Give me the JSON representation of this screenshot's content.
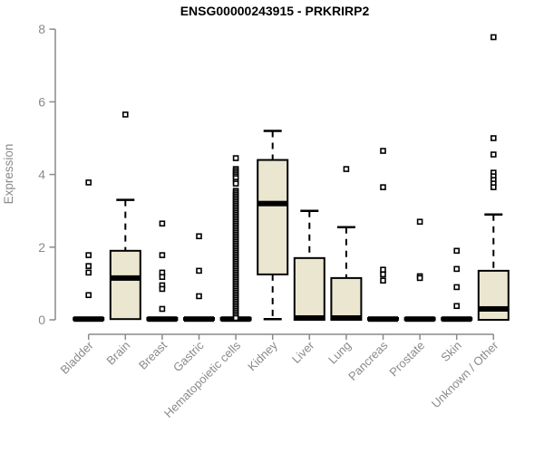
{
  "colors": {
    "box_fill": "#EBE6CF",
    "box_border": "#000000",
    "median": "#000000",
    "whisker": "#000000",
    "outlier_stroke": "#000000",
    "outlier_fill": "#ffffff",
    "axis": "#8a8a8a",
    "label": "#8a8a8a",
    "title": "#000000",
    "background": "#ffffff"
  },
  "chart_data": {
    "type": "boxplot",
    "title": "ENSG00000243915 - PRKRIRP2",
    "ylabel": "Expression",
    "xlabel": "",
    "ylim": [
      0,
      8
    ],
    "yticks": [
      "0",
      "2",
      "4",
      "6",
      "8"
    ],
    "ytick_values": [
      0,
      2,
      4,
      6,
      8
    ],
    "grid": "off",
    "legend": "none",
    "categories": [
      "Bladder",
      "Brain",
      "Breast",
      "Gastric",
      "Hematopoietic cells",
      "Kidney",
      "Liver",
      "Lung",
      "Pancreas",
      "Prostate",
      "Skin",
      "Unknown / Other"
    ],
    "series": [
      {
        "name": "Bladder",
        "median": 0.02,
        "q1": 0,
        "q3": 0.05,
        "whisker_low": 0,
        "whisker_high": 0.05,
        "outliers": [
          3.78,
          1.78,
          1.48,
          1.3,
          0.68
        ]
      },
      {
        "name": "Brain",
        "median": 1.15,
        "q1": 0.02,
        "q3": 1.9,
        "whisker_low": 0.02,
        "whisker_high": 3.3,
        "outliers": [
          5.65
        ]
      },
      {
        "name": "Breast",
        "median": 0.02,
        "q1": 0,
        "q3": 0.05,
        "whisker_low": 0,
        "whisker_high": 0.05,
        "outliers": [
          2.65,
          1.78,
          1.3,
          1.18,
          0.95,
          0.85,
          0.3
        ]
      },
      {
        "name": "Gastric",
        "median": 0.02,
        "q1": 0,
        "q3": 0.05,
        "whisker_low": 0,
        "whisker_high": 0.05,
        "outliers": [
          2.3,
          1.35,
          0.65
        ]
      },
      {
        "name": "Hematopoietic cells",
        "median": 0.02,
        "q1": 0,
        "q3": 0.05,
        "whisker_low": 0,
        "whisker_high": 0.05,
        "outliers": [
          4.45,
          4.15,
          4.1,
          4.05,
          4.0,
          3.95,
          3.9,
          3.8,
          3.75,
          3.55,
          3.5,
          3.45,
          3.4,
          3.35,
          3.3,
          3.25,
          3.2,
          3.15,
          3.1,
          3.05,
          3.0,
          2.95,
          2.9,
          2.85,
          2.8,
          2.75,
          2.7,
          2.65,
          2.6,
          2.55,
          2.5,
          2.45,
          2.4,
          2.35,
          2.3,
          2.25,
          2.2,
          2.15,
          2.1,
          2.05,
          2.0,
          1.95,
          1.9,
          1.85,
          1.8,
          1.75,
          1.7,
          1.65,
          1.6,
          1.55,
          1.5,
          1.45,
          1.4,
          1.35,
          1.3,
          1.25,
          1.2,
          1.15,
          1.1,
          1.05,
          1.0,
          0.95,
          0.9,
          0.85,
          0.8,
          0.75,
          0.7,
          0.65,
          0.6,
          0.55,
          0.5,
          0.45,
          0.4,
          0.35,
          0.3,
          0.25,
          0.2,
          0.15,
          0.1,
          0.05
        ]
      },
      {
        "name": "Kidney",
        "median": 3.2,
        "q1": 1.25,
        "q3": 4.4,
        "whisker_low": 0.02,
        "whisker_high": 5.2,
        "outliers": []
      },
      {
        "name": "Liver",
        "median": 0.05,
        "q1": 0,
        "q3": 1.7,
        "whisker_low": 0,
        "whisker_high": 3.0,
        "outliers": []
      },
      {
        "name": "Lung",
        "median": 0.05,
        "q1": 0,
        "q3": 1.15,
        "whisker_low": 0,
        "whisker_high": 2.55,
        "outliers": [
          4.15
        ]
      },
      {
        "name": "Pancreas",
        "median": 0.02,
        "q1": 0,
        "q3": 0.05,
        "whisker_low": 0,
        "whisker_high": 0.05,
        "outliers": [
          4.65,
          3.65,
          1.38,
          1.25,
          1.08
        ]
      },
      {
        "name": "Prostate",
        "median": 0.02,
        "q1": 0,
        "q3": 0.05,
        "whisker_low": 0,
        "whisker_high": 0.05,
        "outliers": [
          2.7,
          1.2,
          1.15
        ]
      },
      {
        "name": "Skin",
        "median": 0.02,
        "q1": 0,
        "q3": 0.05,
        "whisker_low": 0,
        "whisker_high": 0.05,
        "outliers": [
          1.9,
          1.4,
          0.9,
          0.38
        ]
      },
      {
        "name": "Unknown / Other",
        "median": 0.3,
        "q1": 0,
        "q3": 1.35,
        "whisker_low": 0,
        "whisker_high": 2.9,
        "outliers": [
          7.78,
          5.0,
          4.55,
          4.05,
          3.95,
          3.85,
          3.75,
          3.65
        ]
      }
    ]
  }
}
